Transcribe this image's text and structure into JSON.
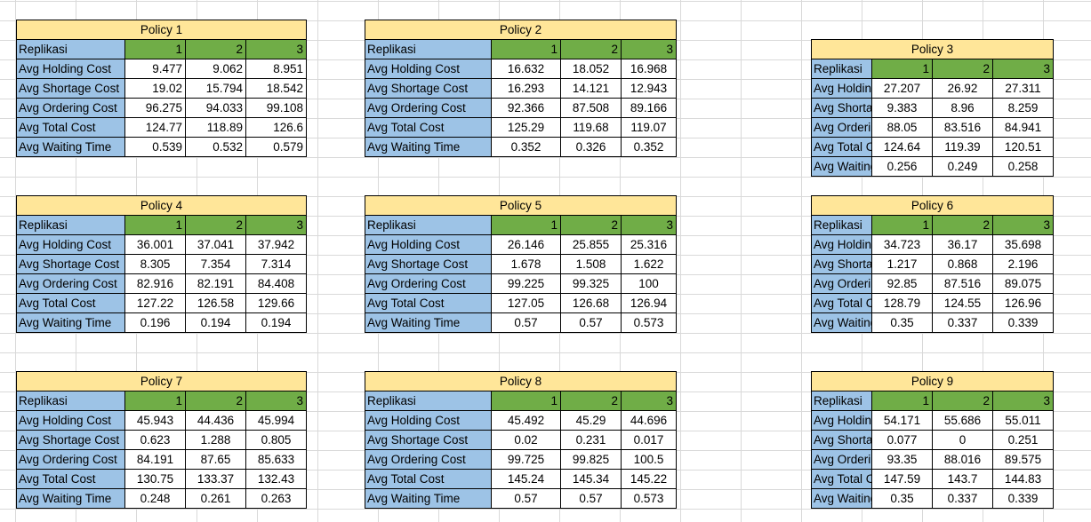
{
  "colors": {
    "title_fill": "#ffe699",
    "label_fill": "#9dc3e6",
    "header_fill": "#70ad47",
    "grid_line": "#d9d9d9"
  },
  "policies": [
    {
      "title": "Policy 1",
      "header": [
        "Replikasi",
        "1",
        "2",
        "3"
      ],
      "rows": [
        {
          "label": "Avg Holding Cost",
          "values": [
            "9.477",
            "9.062",
            "8.951"
          ]
        },
        {
          "label": "Avg Shortage Cost",
          "values": [
            "19.02",
            "15.794",
            "18.542"
          ]
        },
        {
          "label": "Avg Ordering Cost",
          "values": [
            "96.275",
            "94.033",
            "99.108"
          ]
        },
        {
          "label": "Avg Total Cost",
          "values": [
            "124.77",
            "118.89",
            "126.6"
          ]
        },
        {
          "label": "Avg Waiting Time",
          "values": [
            "0.539",
            "0.532",
            "0.579"
          ]
        }
      ]
    },
    {
      "title": "Policy 2",
      "header": [
        "Replikasi",
        "1",
        "2",
        "3"
      ],
      "rows": [
        {
          "label": "Avg Holding Cost",
          "values": [
            "16.632",
            "18.052",
            "16.968"
          ]
        },
        {
          "label": "Avg Shortage Cost",
          "values": [
            "16.293",
            "14.121",
            "12.943"
          ]
        },
        {
          "label": "Avg Ordering Cost",
          "values": [
            "92.366",
            "87.508",
            "89.166"
          ]
        },
        {
          "label": "Avg Total Cost",
          "values": [
            "125.29",
            "119.68",
            "119.07"
          ]
        },
        {
          "label": "Avg Waiting Time",
          "values": [
            "0.352",
            "0.326",
            "0.352"
          ]
        }
      ]
    },
    {
      "title": "Policy 3",
      "header": [
        "Replikasi",
        "1",
        "2",
        "3"
      ],
      "rows": [
        {
          "label": "Avg Holding Cost",
          "values": [
            "27.207",
            "26.92",
            "27.311"
          ]
        },
        {
          "label": "Avg Shortage Cost",
          "values": [
            "9.383",
            "8.96",
            "8.259"
          ]
        },
        {
          "label": "Avg Ordering Cost",
          "values": [
            "88.05",
            "83.516",
            "84.941"
          ]
        },
        {
          "label": "Avg Total Cost",
          "values": [
            "124.64",
            "119.39",
            "120.51"
          ]
        },
        {
          "label": "Avg Waiting Time",
          "values": [
            "0.256",
            "0.249",
            "0.258"
          ]
        }
      ]
    },
    {
      "title": "Policy 4",
      "header": [
        "Replikasi",
        "1",
        "2",
        "3"
      ],
      "rows": [
        {
          "label": "Avg Holding Cost",
          "values": [
            "36.001",
            "37.041",
            "37.942"
          ]
        },
        {
          "label": "Avg Shortage Cost",
          "values": [
            "8.305",
            "7.354",
            "7.314"
          ]
        },
        {
          "label": "Avg Ordering Cost",
          "values": [
            "82.916",
            "82.191",
            "84.408"
          ]
        },
        {
          "label": "Avg Total Cost",
          "values": [
            "127.22",
            "126.58",
            "129.66"
          ]
        },
        {
          "label": "Avg Waiting Time",
          "values": [
            "0.196",
            "0.194",
            "0.194"
          ]
        }
      ]
    },
    {
      "title": "Policy 5",
      "header": [
        "Replikasi",
        "1",
        "2",
        "3"
      ],
      "rows": [
        {
          "label": "Avg Holding Cost",
          "values": [
            "26.146",
            "25.855",
            "25.316"
          ]
        },
        {
          "label": "Avg Shortage Cost",
          "values": [
            "1.678",
            "1.508",
            "1.622"
          ]
        },
        {
          "label": "Avg Ordering Cost",
          "values": [
            "99.225",
            "99.325",
            "100"
          ]
        },
        {
          "label": "Avg Total Cost",
          "values": [
            "127.05",
            "126.68",
            "126.94"
          ]
        },
        {
          "label": "Avg Waiting Time",
          "values": [
            "0.57",
            "0.57",
            "0.573"
          ]
        }
      ]
    },
    {
      "title": "Policy 6",
      "header": [
        "Replikasi",
        "1",
        "2",
        "3"
      ],
      "rows": [
        {
          "label": "Avg Holding Cost",
          "values": [
            "34.723",
            "36.17",
            "35.698"
          ]
        },
        {
          "label": "Avg Shortage Cost",
          "values": [
            "1.217",
            "0.868",
            "2.196"
          ]
        },
        {
          "label": "Avg Ordering Cost",
          "values": [
            "92.85",
            "87.516",
            "89.075"
          ]
        },
        {
          "label": "Avg Total Cost",
          "values": [
            "128.79",
            "124.55",
            "126.96"
          ]
        },
        {
          "label": "Avg Waiting Time",
          "values": [
            "0.35",
            "0.337",
            "0.339"
          ]
        }
      ]
    },
    {
      "title": "Policy 7",
      "header": [
        "Replikasi",
        "1",
        "2",
        "3"
      ],
      "rows": [
        {
          "label": "Avg Holding Cost",
          "values": [
            "45.943",
            "44.436",
            "45.994"
          ]
        },
        {
          "label": "Avg Shortage Cost",
          "values": [
            "0.623",
            "1.288",
            "0.805"
          ]
        },
        {
          "label": "Avg Ordering Cost",
          "values": [
            "84.191",
            "87.65",
            "85.633"
          ]
        },
        {
          "label": "Avg Total Cost",
          "values": [
            "130.75",
            "133.37",
            "132.43"
          ]
        },
        {
          "label": "Avg Waiting Time",
          "values": [
            "0.248",
            "0.261",
            "0.263"
          ]
        }
      ]
    },
    {
      "title": "Policy 8",
      "header": [
        "Replikasi",
        "1",
        "2",
        "3"
      ],
      "rows": [
        {
          "label": "Avg Holding Cost",
          "values": [
            "45.492",
            "45.29",
            "44.696"
          ]
        },
        {
          "label": "Avg Shortage Cost",
          "values": [
            "0.02",
            "0.231",
            "0.017"
          ]
        },
        {
          "label": "Avg Ordering Cost",
          "values": [
            "99.725",
            "99.825",
            "100.5"
          ]
        },
        {
          "label": "Avg Total Cost",
          "values": [
            "145.24",
            "145.34",
            "145.22"
          ]
        },
        {
          "label": "Avg Waiting Time",
          "values": [
            "0.57",
            "0.57",
            "0.573"
          ]
        }
      ]
    },
    {
      "title": "Policy 9",
      "header": [
        "Replikasi",
        "1",
        "2",
        "3"
      ],
      "rows": [
        {
          "label": "Avg Holding Cost",
          "values": [
            "54.171",
            "55.686",
            "55.011"
          ]
        },
        {
          "label": "Avg Shortage Cost",
          "values": [
            "0.077",
            "0",
            "0.251"
          ]
        },
        {
          "label": "Avg Ordering Cost",
          "values": [
            "93.35",
            "88.016",
            "89.575"
          ]
        },
        {
          "label": "Avg Total Cost",
          "values": [
            "147.59",
            "143.7",
            "144.83"
          ]
        },
        {
          "label": "Avg Waiting Time",
          "values": [
            "0.35",
            "0.337",
            "0.339"
          ]
        }
      ]
    }
  ]
}
